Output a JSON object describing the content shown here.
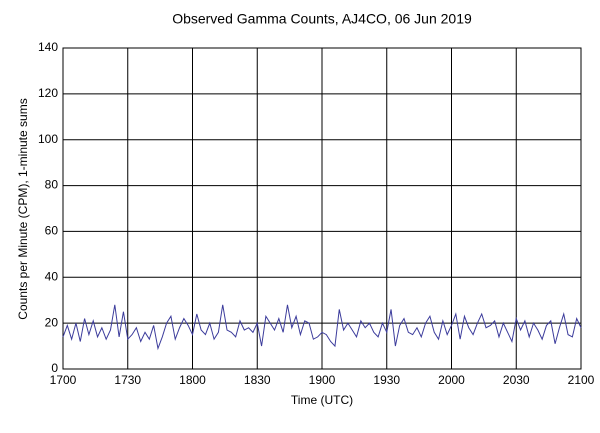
{
  "chart_data": {
    "type": "line",
    "title": "Observed Gamma Counts, AJ4CO, 06 Jun 2019",
    "x_label": "Time (UTC)",
    "y_label": "Counts per Minute (CPM), 1-minute sums",
    "x": [
      "1700",
      "1702",
      "1704",
      "1706",
      "1708",
      "1710",
      "1712",
      "1714",
      "1716",
      "1718",
      "1720",
      "1722",
      "1724",
      "1726",
      "1728",
      "1730",
      "1732",
      "1734",
      "1736",
      "1738",
      "1740",
      "1742",
      "1744",
      "1746",
      "1748",
      "1750",
      "1752",
      "1754",
      "1756",
      "1758",
      "1800",
      "1802",
      "1804",
      "1806",
      "1808",
      "1810",
      "1812",
      "1814",
      "1816",
      "1818",
      "1820",
      "1822",
      "1824",
      "1826",
      "1828",
      "1830",
      "1832",
      "1834",
      "1836",
      "1838",
      "1840",
      "1842",
      "1844",
      "1846",
      "1848",
      "1850",
      "1852",
      "1854",
      "1856",
      "1858",
      "1900",
      "1902",
      "1904",
      "1906",
      "1908",
      "1910",
      "1912",
      "1914",
      "1916",
      "1918",
      "1920",
      "1922",
      "1924",
      "1926",
      "1928",
      "1930",
      "1932",
      "1934",
      "1936",
      "1938",
      "1940",
      "1942",
      "1944",
      "1946",
      "1948",
      "1950",
      "1952",
      "1954",
      "1956",
      "1958",
      "2000",
      "2002",
      "2004",
      "2006",
      "2008",
      "2010",
      "2012",
      "2014",
      "2016",
      "2018",
      "2020",
      "2022",
      "2024",
      "2026",
      "2028",
      "2030",
      "2032",
      "2034",
      "2036",
      "2038",
      "2040",
      "2042",
      "2044",
      "2046",
      "2048",
      "2050",
      "2052",
      "2054",
      "2056",
      "2058",
      "2100"
    ],
    "series": [
      {
        "name": "CPM",
        "color": "#3c3c9c",
        "values": [
          14,
          19,
          13,
          20,
          12,
          22,
          15,
          21,
          14,
          18,
          13,
          17,
          28,
          14,
          25,
          13,
          15,
          18,
          12,
          16,
          13,
          19,
          9,
          14,
          20,
          23,
          13,
          18,
          22,
          19,
          15,
          24,
          17,
          15,
          20,
          13,
          16,
          28,
          17,
          16,
          14,
          21,
          17,
          18,
          16,
          20,
          10,
          23,
          20,
          17,
          22,
          16,
          28,
          18,
          23,
          15,
          21,
          20,
          13,
          14,
          16,
          15,
          12,
          10,
          26,
          17,
          20,
          17,
          14,
          21,
          18,
          20,
          16,
          14,
          20,
          16,
          26,
          10,
          19,
          22,
          16,
          15,
          18,
          14,
          20,
          23,
          16,
          13,
          21,
          15,
          19,
          24,
          13,
          23,
          18,
          15,
          20,
          24,
          18,
          19,
          21,
          14,
          20,
          16,
          12,
          22,
          17,
          21,
          14,
          20,
          17,
          13,
          19,
          21,
          11,
          18,
          24,
          15,
          14,
          22,
          18
        ]
      }
    ],
    "xlim": [
      "1700",
      "2100"
    ],
    "xticks": [
      "1700",
      "1730",
      "1800",
      "1830",
      "1900",
      "1930",
      "2000",
      "2030",
      "2100"
    ],
    "ylim": [
      0,
      140
    ],
    "yticks": [
      0,
      20,
      40,
      60,
      80,
      100,
      120,
      140
    ],
    "grid": true
  }
}
